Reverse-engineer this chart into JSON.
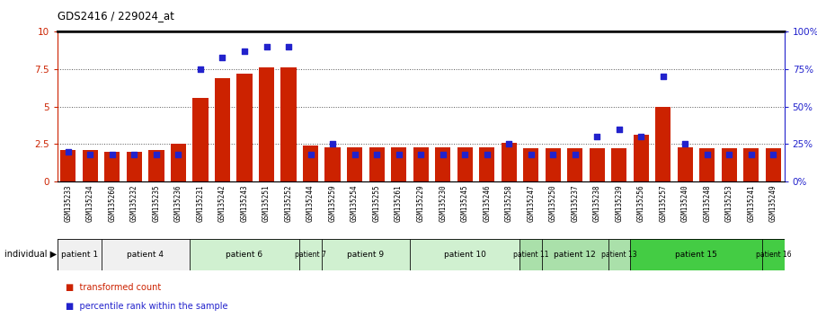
{
  "title": "GDS2416 / 229024_at",
  "samples": [
    "GSM135233",
    "GSM135234",
    "GSM135260",
    "GSM135232",
    "GSM135235",
    "GSM135236",
    "GSM135231",
    "GSM135242",
    "GSM135243",
    "GSM135251",
    "GSM135252",
    "GSM135244",
    "GSM135259",
    "GSM135254",
    "GSM135255",
    "GSM135261",
    "GSM135229",
    "GSM135230",
    "GSM135245",
    "GSM135246",
    "GSM135258",
    "GSM135247",
    "GSM135250",
    "GSM135237",
    "GSM135238",
    "GSM135239",
    "GSM135256",
    "GSM135257",
    "GSM135240",
    "GSM135248",
    "GSM135253",
    "GSM135241",
    "GSM135249"
  ],
  "red_values": [
    2.1,
    2.1,
    2.0,
    2.0,
    2.1,
    2.5,
    5.6,
    6.9,
    7.2,
    7.6,
    7.6,
    2.4,
    2.3,
    2.3,
    2.3,
    2.3,
    2.3,
    2.3,
    2.3,
    2.3,
    2.6,
    2.2,
    2.2,
    2.2,
    2.2,
    2.2,
    3.1,
    5.0,
    2.3,
    2.2,
    2.2,
    2.2,
    2.2
  ],
  "blue_values": [
    20,
    18,
    18,
    18,
    18,
    18,
    75,
    83,
    87,
    90,
    90,
    18,
    25,
    18,
    18,
    18,
    18,
    18,
    18,
    18,
    25,
    18,
    18,
    18,
    30,
    35,
    30,
    70,
    25,
    18,
    18,
    18,
    18
  ],
  "patient_groups": [
    {
      "label": "patient 1",
      "start": 0,
      "end": 2,
      "color": "#f0f0f0"
    },
    {
      "label": "patient 4",
      "start": 2,
      "end": 6,
      "color": "#f0f0f0"
    },
    {
      "label": "patient 6",
      "start": 6,
      "end": 11,
      "color": "#d0f0d0"
    },
    {
      "label": "patient 7",
      "start": 11,
      "end": 12,
      "color": "#d0f0d0"
    },
    {
      "label": "patient 9",
      "start": 12,
      "end": 16,
      "color": "#d0f0d0"
    },
    {
      "label": "patient 10",
      "start": 16,
      "end": 21,
      "color": "#d0f0d0"
    },
    {
      "label": "patient 11",
      "start": 21,
      "end": 22,
      "color": "#aae0aa"
    },
    {
      "label": "patient 12",
      "start": 22,
      "end": 25,
      "color": "#aae0aa"
    },
    {
      "label": "patient 13",
      "start": 25,
      "end": 26,
      "color": "#aae0aa"
    },
    {
      "label": "patient 15",
      "start": 26,
      "end": 32,
      "color": "#44cc44"
    },
    {
      "label": "patient 16",
      "start": 32,
      "end": 33,
      "color": "#44cc44"
    }
  ],
  "bar_color": "#cc2200",
  "dot_color": "#2222cc",
  "grid_color": "#555555",
  "ylim_left": [
    0,
    10
  ],
  "ylim_right": [
    0,
    100
  ],
  "yticks_left": [
    0,
    2.5,
    5.0,
    7.5,
    10
  ],
  "yticks_right": [
    0,
    25,
    50,
    75,
    100
  ],
  "ytick_labels_left": [
    "0",
    "2.5",
    "5",
    "7.5",
    "10"
  ],
  "ytick_labels_right": [
    "0%",
    "25%",
    "50%",
    "75%",
    "100%"
  ],
  "hlines": [
    2.5,
    5.0,
    7.5
  ],
  "legend_items": [
    {
      "label": "transformed count",
      "color": "#cc2200"
    },
    {
      "label": "percentile rank within the sample",
      "color": "#2222cc"
    }
  ],
  "xlabels_bg": "#dddddd",
  "bar_width": 0.7
}
